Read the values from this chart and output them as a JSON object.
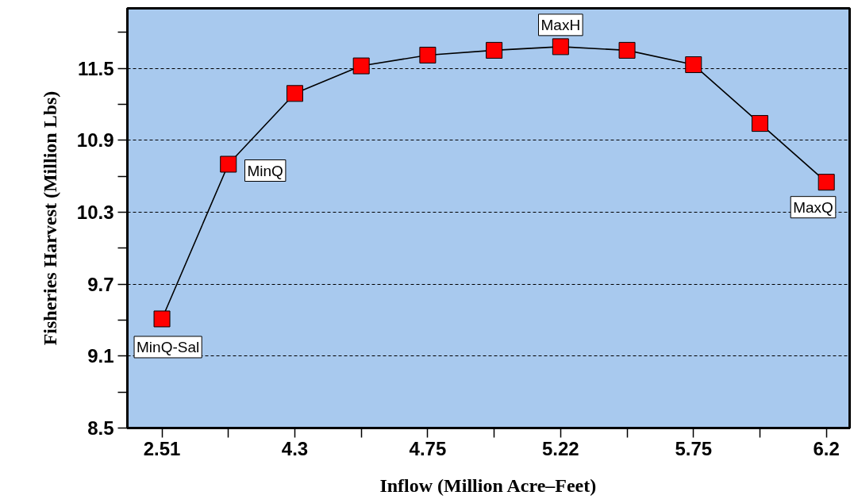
{
  "chart_data": {
    "type": "line",
    "xlabel": "Inflow (Million Acre–Feet)",
    "ylabel": "Fisheries Harvest (Million Lbs)",
    "categories": [
      "2.51",
      null,
      "4.3",
      null,
      "4.75",
      null,
      "5.22",
      null,
      "5.75",
      null,
      "6.2"
    ],
    "series": [
      {
        "color": "#ff0000",
        "values": [
          9.41,
          10.7,
          11.29,
          11.52,
          11.61,
          11.65,
          11.68,
          11.65,
          11.53,
          11.04,
          10.55
        ]
      }
    ],
    "ylim": [
      8.5,
      12.0
    ],
    "yticks": [
      8.5,
      {
        "value": 8.8,
        "label": null
      },
      9.1,
      {
        "value": 9.4,
        "label": null
      },
      9.7,
      {
        "value": 10.0,
        "label": null
      },
      10.3,
      {
        "value": 10.6,
        "label": null
      },
      10.9,
      {
        "value": 11.2,
        "label": null
      },
      11.5,
      {
        "value": 11.8,
        "label": null
      }
    ],
    "grid": "y",
    "marker": "square",
    "line_style": "solid",
    "annotations": [
      {
        "text": "MinQ-Sal",
        "x": "2.51",
        "y": 9.41
      },
      "MinQ",
      {
        "text": "MaxH",
        "x": "5.22",
        "y": 11.68
      },
      {
        "text": "MaxQ",
        "x": "6.2",
        "y": 10.55
      }
    ]
  }
}
